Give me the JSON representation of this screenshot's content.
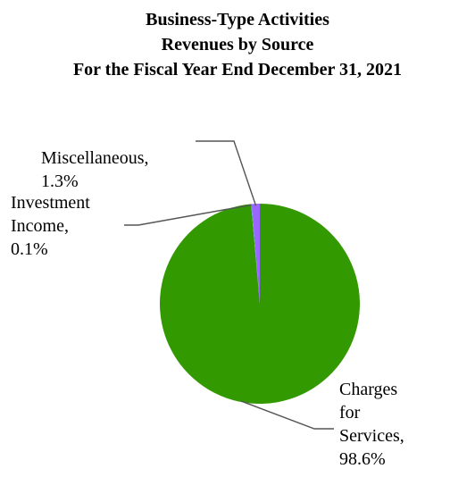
{
  "chart_data": {
    "type": "pie",
    "title_lines": [
      "Business-Type Activities",
      "Revenues by Source",
      "For the Fiscal Year End December 31, 2021"
    ],
    "slices": [
      {
        "name": "Charges for Services",
        "value": 98.6,
        "label_lines": [
          "Charges",
          "for",
          "Services,",
          "98.6%"
        ],
        "color": "#339900"
      },
      {
        "name": "Investment Income",
        "value": 0.1,
        "label_lines": [
          "Investment",
          "Income,",
          "0.1%"
        ],
        "color": "#5b9bd5"
      },
      {
        "name": "Miscellaneous",
        "value": 1.3,
        "label_lines": [
          "Miscellaneous,",
          "1.3%"
        ],
        "color": "#9966ff"
      }
    ],
    "legend": "none",
    "leader_line_color": "#555555"
  }
}
